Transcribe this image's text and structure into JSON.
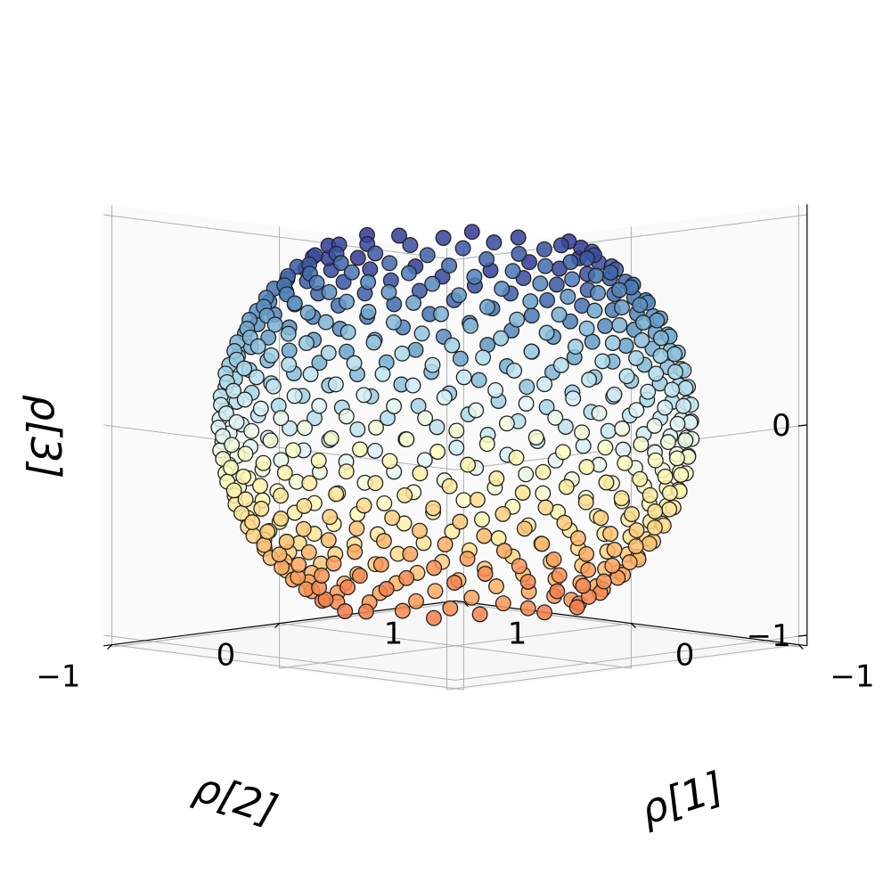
{
  "chart_data": {
    "type": "scatter",
    "dimension": "3d",
    "title": "",
    "xlabel": "ρ[1]",
    "ylabel": "ρ[2]",
    "zlabel": "ρ[3]",
    "xlim": [
      -1,
      1
    ],
    "ylim": [
      -1,
      1
    ],
    "zlim": [
      -1,
      1
    ],
    "x_ticks": [
      "−1",
      "0",
      "1"
    ],
    "y_ticks": [
      "−1",
      "0",
      "1"
    ],
    "z_ticks": [
      "−1",
      "0"
    ],
    "grid": true,
    "view": {
      "elevation_deg": 10,
      "azimuth_deg": 45
    },
    "colormap": "RdYlBu",
    "color_by": "z",
    "marker_edge_color": "#222222",
    "series": [
      {
        "kind": "points on unit sphere (Fibonacci lattice), 600 points",
        "point_count": 600,
        "radius": 1.0,
        "z_range_shown": [
          -0.85,
          0.85
        ]
      }
    ]
  }
}
